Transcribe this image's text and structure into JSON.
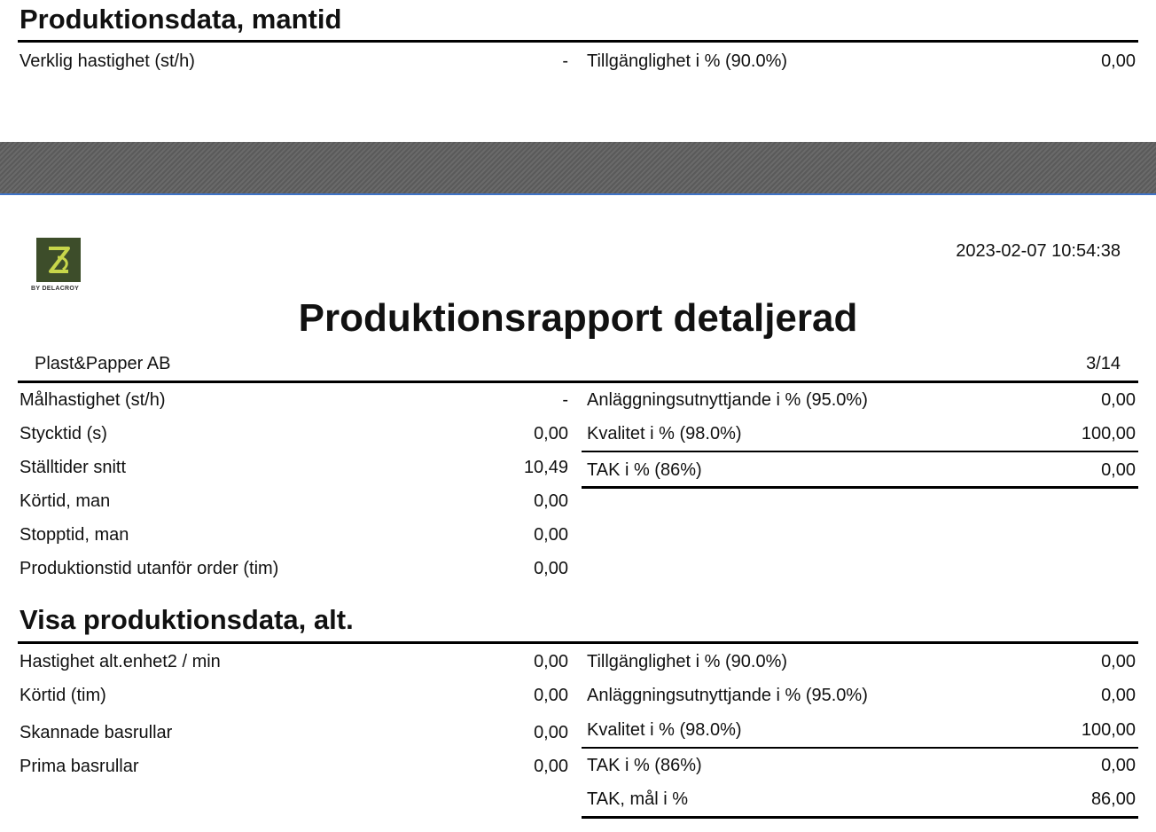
{
  "top_section": {
    "title": "Produktionsdata, mantid",
    "left_label": "Verklig hastighet (st/h)",
    "left_value": "-",
    "right_label": "Tillgänglighet i % (90.0%)",
    "right_value": "0,00"
  },
  "page": {
    "logo_text": "BY DELACROY",
    "timestamp": "2023-02-07 10:54:38",
    "report_title": "Produktionsrapport detaljerad",
    "company": "Plast&Papper AB",
    "page_number": "3/14"
  },
  "section1": {
    "left_rows": [
      {
        "label": "Målhastighet (st/h)",
        "value": "-"
      },
      {
        "label": "Stycktid (s)",
        "value": "0,00"
      },
      {
        "label": "Ställtider snitt",
        "value": "10,49"
      },
      {
        "label": "Körtid, man",
        "value": "0,00"
      },
      {
        "label": "Stopptid, man",
        "value": "0,00"
      },
      {
        "label": "Produktionstid utanför order (tim)",
        "value": "0,00"
      }
    ],
    "right_rows": [
      {
        "label": "Anläggningsutnyttjande i % (95.0%)",
        "value": "0,00"
      },
      {
        "label": "Kvalitet i % (98.0%)",
        "value": "100,00"
      },
      {
        "label": "TAK i % (86%)",
        "value": "0,00"
      }
    ]
  },
  "section2": {
    "title": "Visa produktionsdata, alt.",
    "left_rows": [
      {
        "label": "Hastighet alt.enhet2 / min",
        "value": "0,00"
      },
      {
        "label": "Körtid (tim)",
        "value": "0,00"
      },
      {
        "label": "Skannade basrullar",
        "value": "0,00"
      },
      {
        "label": "Prima basrullar",
        "value": "0,00"
      }
    ],
    "right_rows": [
      {
        "label": "Tillgänglighet i % (90.0%)",
        "value": "0,00"
      },
      {
        "label": "Anläggningsutnyttjande i % (95.0%)",
        "value": "0,00"
      },
      {
        "label": "Kvalitet i % (98.0%)",
        "value": "100,00"
      },
      {
        "label": "TAK i % (86%)",
        "value": "0,00"
      },
      {
        "label": "TAK, mål i %",
        "value": "86,00"
      }
    ]
  },
  "colors": {
    "divider": "#5f5f5f",
    "divider_accent": "#3f73c6",
    "logo_bg": "#3d4d2a",
    "logo_mark": "#c7d64a"
  }
}
